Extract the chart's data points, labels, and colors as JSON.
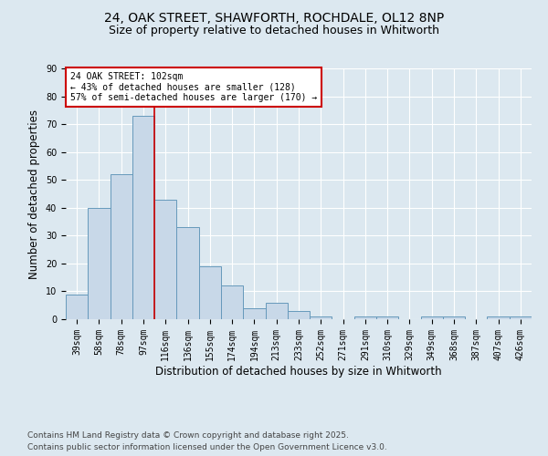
{
  "title_line1": "24, OAK STREET, SHAWFORTH, ROCHDALE, OL12 8NP",
  "title_line2": "Size of property relative to detached houses in Whitworth",
  "xlabel": "Distribution of detached houses by size in Whitworth",
  "ylabel": "Number of detached properties",
  "bar_labels": [
    "39sqm",
    "58sqm",
    "78sqm",
    "97sqm",
    "116sqm",
    "136sqm",
    "155sqm",
    "174sqm",
    "194sqm",
    "213sqm",
    "233sqm",
    "252sqm",
    "271sqm",
    "291sqm",
    "310sqm",
    "329sqm",
    "349sqm",
    "368sqm",
    "387sqm",
    "407sqm",
    "426sqm"
  ],
  "bar_values": [
    9,
    40,
    52,
    73,
    43,
    33,
    19,
    12,
    4,
    6,
    3,
    1,
    0,
    1,
    1,
    0,
    1,
    1,
    0,
    1,
    1
  ],
  "bar_color": "#c8d8e8",
  "bar_edge_color": "#6699bb",
  "background_color": "#dce8f0",
  "grid_color": "#ffffff",
  "vline_color": "#cc0000",
  "vline_x": 3.5,
  "annotation_title": "24 OAK STREET: 102sqm",
  "annotation_line2": "← 43% of detached houses are smaller (128)",
  "annotation_line3": "57% of semi-detached houses are larger (170) →",
  "annotation_box_color": "#ffffff",
  "annotation_box_edge": "#cc0000",
  "ylim": [
    0,
    90
  ],
  "yticks": [
    0,
    10,
    20,
    30,
    40,
    50,
    60,
    70,
    80,
    90
  ],
  "footnote_line1": "Contains HM Land Registry data © Crown copyright and database right 2025.",
  "footnote_line2": "Contains public sector information licensed under the Open Government Licence v3.0.",
  "title_fontsize": 10,
  "subtitle_fontsize": 9,
  "axis_label_fontsize": 8.5,
  "tick_fontsize": 7,
  "annotation_fontsize": 7,
  "footnote_fontsize": 6.5
}
